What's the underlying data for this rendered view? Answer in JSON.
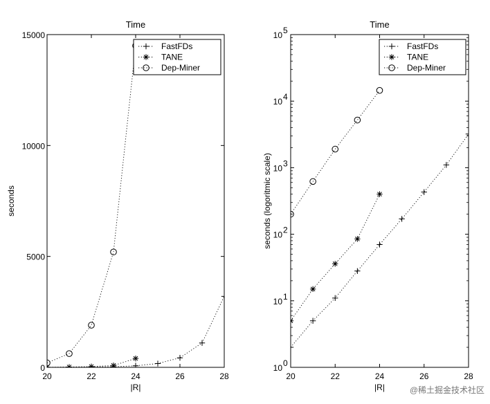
{
  "chart_data": [
    {
      "type": "line",
      "title": "Time",
      "xlabel": "|R|",
      "ylabel": "seconds",
      "xlim": [
        20,
        28
      ],
      "ylim": [
        0,
        15000
      ],
      "yscale": "linear",
      "xticks": [
        20,
        22,
        24,
        26,
        28
      ],
      "yticks": [
        0,
        5000,
        10000,
        15000
      ],
      "legend_position": "top-right",
      "grid": false,
      "series": [
        {
          "name": "FastFDs",
          "marker": "+",
          "x": [
            20,
            21,
            22,
            23,
            24,
            25,
            26,
            27,
            28
          ],
          "y": [
            2,
            5,
            11,
            28,
            70,
            170,
            430,
            1100,
            3200
          ]
        },
        {
          "name": "TANE",
          "marker": "*",
          "x": [
            20,
            21,
            22,
            23,
            24
          ],
          "y": [
            5,
            15,
            36,
            85,
            400
          ]
        },
        {
          "name": "Dep-Miner",
          "marker": "o",
          "x": [
            20,
            21,
            22,
            23,
            24
          ],
          "y": [
            200,
            620,
            1900,
            5200,
            14500
          ]
        }
      ]
    },
    {
      "type": "line",
      "title": "Time",
      "xlabel": "|R|",
      "ylabel": "seconds (logoritmic scale)",
      "xlim": [
        20,
        28
      ],
      "ylim": [
        1,
        100000
      ],
      "yscale": "log",
      "xticks": [
        20,
        22,
        24,
        26,
        28
      ],
      "yticks": [
        1,
        10,
        100,
        1000,
        10000,
        100000
      ],
      "yticklabels": [
        {
          "base": "10",
          "exp": "0"
        },
        {
          "base": "10",
          "exp": "1"
        },
        {
          "base": "10",
          "exp": "2"
        },
        {
          "base": "10",
          "exp": "3"
        },
        {
          "base": "10",
          "exp": "4"
        },
        {
          "base": "10",
          "exp": "5"
        }
      ],
      "legend_position": "top-right",
      "grid": false,
      "series": [
        {
          "name": "FastFDs",
          "marker": "+",
          "x": [
            20,
            21,
            22,
            23,
            24,
            25,
            26,
            27,
            28
          ],
          "y": [
            2,
            5,
            11,
            28,
            70,
            170,
            430,
            1100,
            3200
          ]
        },
        {
          "name": "TANE",
          "marker": "*",
          "x": [
            20,
            21,
            22,
            23,
            24
          ],
          "y": [
            5,
            15,
            36,
            85,
            400
          ]
        },
        {
          "name": "Dep-Miner",
          "marker": "o",
          "x": [
            20,
            21,
            22,
            23,
            24
          ],
          "y": [
            200,
            620,
            1900,
            5200,
            14500
          ]
        }
      ]
    }
  ],
  "watermark": "@稀土掘金技术社区"
}
